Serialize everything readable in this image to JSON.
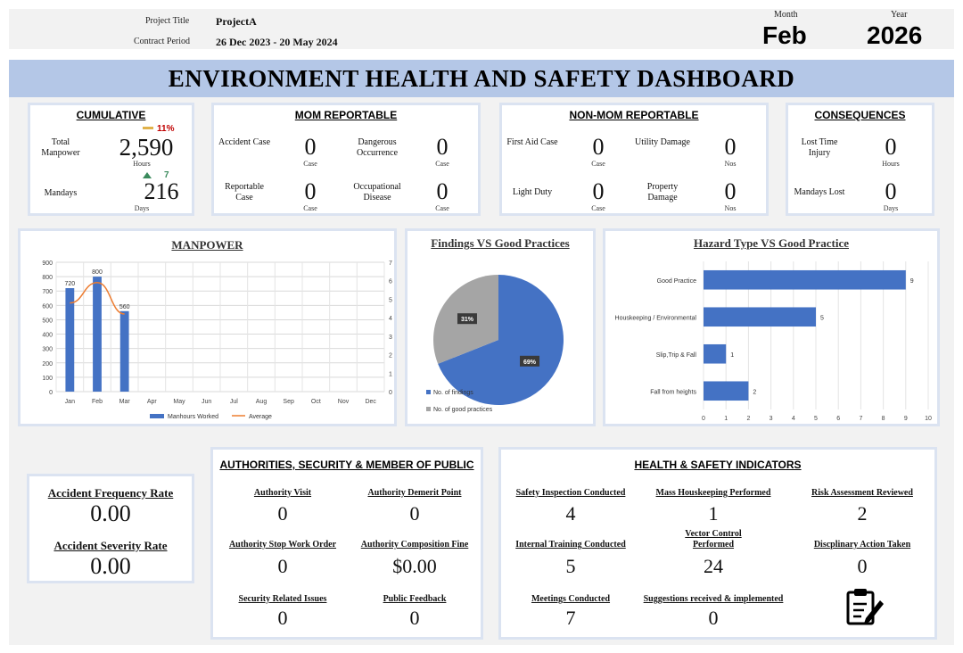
{
  "header": {
    "project_title_label": "Project Title",
    "project_title_value": "ProjectA",
    "contract_period_label": "Contract Period",
    "contract_period_value": "26 Dec 2023 - 20 May 2024",
    "month_label": "Month",
    "month_value": "Feb",
    "year_label": "Year",
    "year_value": "2026"
  },
  "dashboard_title": "ENVIRONMENT HEALTH AND SAFETY DASHBOARD",
  "cumulative": {
    "title": "CUMULATIVE",
    "manpower_label": "Total Manpower",
    "manpower_value": "2,590",
    "manpower_unit": "Hours",
    "manpower_change": "11%",
    "manpower_change_color": "#c00000",
    "mandays_label": "Mandays",
    "mandays_value": "216",
    "mandays_unit": "Days",
    "mandays_change": "7",
    "mandays_change_color": "#3a8a5c"
  },
  "mom_reportable": {
    "title": "MOM REPORTABLE",
    "items": [
      {
        "label": "Accident Case",
        "value": "0",
        "unit": "Case"
      },
      {
        "label": "Dangerous Occurrence",
        "value": "0",
        "unit": "Case"
      },
      {
        "label": "Reportable Case",
        "value": "0",
        "unit": "Case"
      },
      {
        "label": "Occupational Disease",
        "value": "0",
        "unit": "Case"
      }
    ]
  },
  "non_mom_reportable": {
    "title": "NON-MOM REPORTABLE",
    "items": [
      {
        "label": "First Aid Case",
        "value": "0",
        "unit": "Case"
      },
      {
        "label": "Utility Damage",
        "value": "0",
        "unit": "Nos"
      },
      {
        "label": "Light Duty",
        "value": "0",
        "unit": "Case"
      },
      {
        "label": "Property Damage",
        "value": "0",
        "unit": "Nos"
      }
    ]
  },
  "consequences": {
    "title": "CONSEQUENCES",
    "items": [
      {
        "label": "Lost Time Injury",
        "value": "0",
        "unit": "Hours"
      },
      {
        "label": "Mandays Lost",
        "value": "0",
        "unit": "Days"
      }
    ]
  },
  "rates": {
    "frequency_label": "Accident Frequency Rate",
    "frequency_value": "0.00",
    "severity_label": "Accident Severity Rate",
    "severity_value": "0.00"
  },
  "authorities": {
    "title": "AUTHORITIES, SECURITY & MEMBER OF PUBLIC",
    "items": [
      {
        "label": "Authority Visit",
        "value": "0"
      },
      {
        "label": "Authority Demerit Point",
        "value": "0"
      },
      {
        "label": "Authority Stop Work Order",
        "value": "0"
      },
      {
        "label": "Authority Composition Fine",
        "value": "$0.00"
      },
      {
        "label": "Security Related Issues",
        "value": "0"
      },
      {
        "label": "Public Feedback",
        "value": "0"
      }
    ]
  },
  "indicators": {
    "title": "HEALTH & SAFETY INDICATORS",
    "items": [
      {
        "label": "Safety Inspection Conducted",
        "value": "4"
      },
      {
        "label": "Mass Houskeeping Performed",
        "value": "1"
      },
      {
        "label": "Risk Assessment Reviewed",
        "value": "2"
      },
      {
        "label": "Internal Training Conducted",
        "value": "5"
      },
      {
        "label": "Vector Control Performed",
        "value": "24"
      },
      {
        "label": "Discplinary Action Taken",
        "value": "0"
      },
      {
        "label": "Meetings Conducted",
        "value": "7"
      },
      {
        "label": "Suggestions received & implemented",
        "value": "0"
      }
    ],
    "icon": "clipboard-edit-icon"
  },
  "colors": {
    "bar_blue": "#4472c4",
    "line_orange": "#ed7d31",
    "pie_gray": "#a5a5a5",
    "banner": "#b4c7e7"
  },
  "chart_data": [
    {
      "type": "bar",
      "title": "MANPOWER",
      "categories": [
        "Jan",
        "Feb",
        "Mar",
        "Apr",
        "May",
        "Jun",
        "Jul",
        "Aug",
        "Sep",
        "Oct",
        "Nov",
        "Dec"
      ],
      "series": [
        {
          "name": "Manhours Worked",
          "axis": "left",
          "values": [
            720,
            800,
            560,
            null,
            null,
            null,
            null,
            null,
            null,
            null,
            null,
            null
          ]
        },
        {
          "name": "Average",
          "type": "line",
          "axis": "right",
          "values": [
            4.8,
            5.9,
            4.2,
            null,
            null,
            null,
            null,
            null,
            null,
            null,
            null,
            null
          ]
        }
      ],
      "ylim": [
        0,
        900
      ],
      "yticks": [
        0,
        100,
        200,
        300,
        400,
        500,
        600,
        700,
        800,
        900
      ],
      "y2lim": [
        0,
        7
      ],
      "y2ticks": [
        0,
        1,
        2,
        3,
        4,
        5,
        6,
        7
      ],
      "data_labels": [
        "720",
        "800",
        "560"
      ],
      "grid": true,
      "legend": "bottom"
    },
    {
      "type": "pie",
      "title": "Findings VS Good Practices",
      "labels": [
        "No. of findings",
        "No. of good practices"
      ],
      "values": [
        69,
        31
      ],
      "data_labels": [
        "69%",
        "31%"
      ],
      "legend": "bottom-left"
    },
    {
      "type": "bar",
      "orientation": "horizontal",
      "title": "Hazard Type VS Good Practice",
      "categories": [
        "Good Practice",
        "Houskeeping / Environmental",
        "Slip,Trip & Fall",
        "Fall from heights"
      ],
      "values": [
        9,
        5,
        1,
        2
      ],
      "xlim": [
        0,
        10
      ],
      "xticks": [
        0,
        1,
        2,
        3,
        4,
        5,
        6,
        7,
        8,
        9,
        10
      ],
      "grid": true
    }
  ]
}
